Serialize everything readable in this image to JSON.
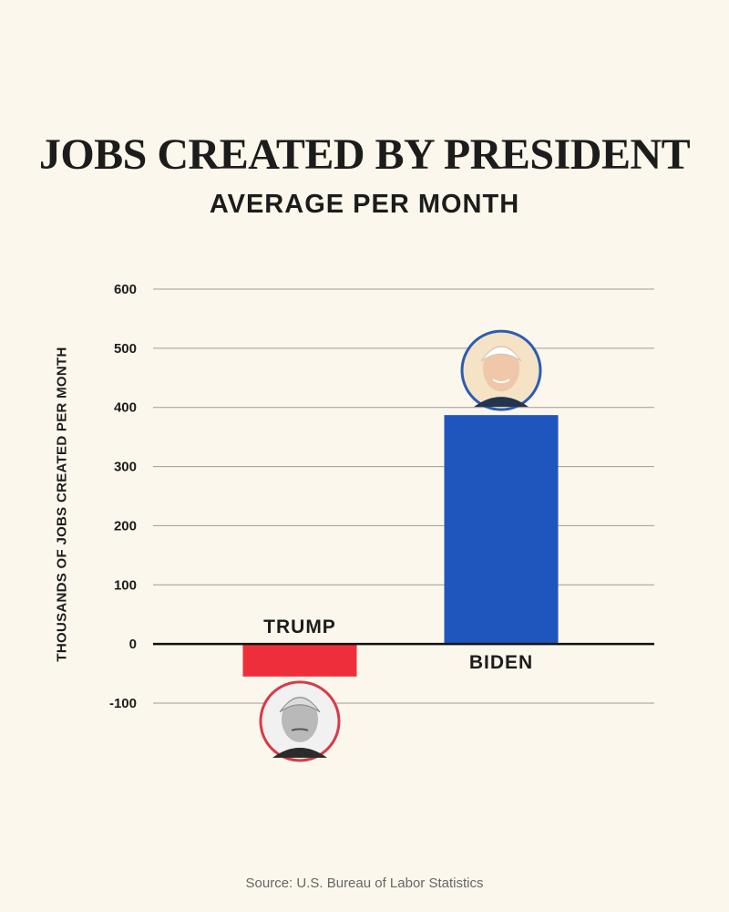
{
  "chart_data": {
    "type": "bar",
    "title": "JOBS CREATED BY PRESIDENT",
    "subtitle": "AVERAGE PER MONTH",
    "xlabel": "",
    "ylabel": "THOUSANDS OF JOBS CREATED PER MONTH",
    "ylim": [
      -100,
      600
    ],
    "yticks": [
      600,
      500,
      400,
      300,
      200,
      100,
      0,
      -100
    ],
    "ytick_labels": [
      "600",
      "500",
      "400",
      "300",
      "200",
      "100",
      "0",
      "-100"
    ],
    "grid": true,
    "categories": [
      "TRUMP",
      "BIDEN"
    ],
    "values": [
      -55,
      387
    ],
    "colors": [
      "#ee2f3b",
      "#1f56bd"
    ],
    "portraits": [
      "trump-portrait",
      "biden-portrait"
    ],
    "source": "Source: U.S. Bureau of Labor Statistics"
  }
}
